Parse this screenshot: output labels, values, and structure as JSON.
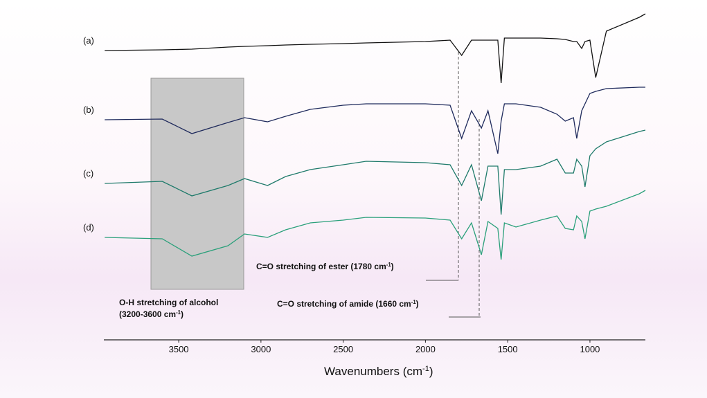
{
  "chart_data": {
    "type": "line",
    "x": [
      3950,
      3600,
      3420,
      3200,
      3100,
      2960,
      2850,
      2700,
      2500,
      2360,
      2000,
      1850,
      1780,
      1720,
      1660,
      1620,
      1560,
      1540,
      1520,
      1450,
      1300,
      1200,
      1150,
      1100,
      1080,
      1050,
      1030,
      1000,
      965,
      900,
      700,
      663
    ],
    "xlim": [
      3955,
      663
    ],
    "xticks": [
      3500,
      3000,
      2500,
      2000,
      1500,
      1000
    ],
    "ylim": [
      0,
      476
    ],
    "x_label": [
      "Wavenumbers  (cm",
      "-1",
      ")"
    ],
    "series": [
      {
        "name": "(a)",
        "color": "#111111",
        "values": [
          418,
          419,
          420,
          423,
          424,
          425,
          426,
          427,
          428,
          429,
          431,
          433,
          411,
          433,
          433,
          433,
          433,
          371,
          436,
          436,
          436,
          435,
          434,
          431,
          431,
          421,
          431,
          433,
          379,
          446,
          466,
          471
        ]
      },
      {
        "name": "(b)",
        "color": "#1f2a5c",
        "values": [
          318,
          319,
          298,
          314,
          321,
          315,
          323,
          333,
          339,
          341,
          341,
          339,
          291,
          331,
          306,
          331,
          269,
          316,
          341,
          341,
          336,
          326,
          316,
          321,
          291,
          331,
          341,
          356,
          359,
          363,
          365,
          365
        ]
      },
      {
        "name": "(c)",
        "color": "#1e7a6a",
        "values": [
          226,
          229,
          208,
          223,
          233,
          223,
          236,
          246,
          253,
          258,
          256,
          253,
          223,
          253,
          201,
          251,
          251,
          181,
          246,
          246,
          251,
          261,
          241,
          241,
          261,
          251,
          221,
          266,
          276,
          286,
          301,
          303
        ]
      },
      {
        "name": "(d)",
        "color": "#2aa07a",
        "values": [
          148,
          146,
          121,
          136,
          153,
          148,
          159,
          169,
          173,
          177,
          176,
          173,
          146,
          169,
          123,
          171,
          161,
          116,
          169,
          163,
          173,
          179,
          161,
          159,
          179,
          171,
          146,
          186,
          189,
          193,
          211,
          216
        ]
      }
    ],
    "annotations": [
      {
        "parts": [
          "O-H stretching of alcohol"
        ]
      },
      {
        "parts": [
          "(3200-3600 cm",
          "-1",
          ")"
        ]
      },
      {
        "parts": [
          "C=O stretching of ester (1780 cm",
          "-1",
          ")"
        ]
      },
      {
        "parts": [
          "C=O stretching of amide (1660 cm",
          "-1",
          ")"
        ]
      }
    ]
  }
}
